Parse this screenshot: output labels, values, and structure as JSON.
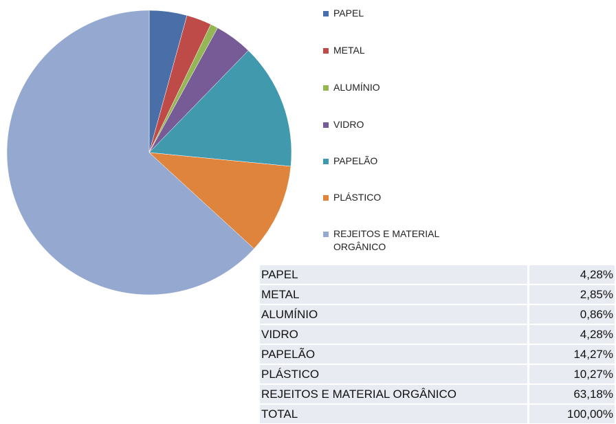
{
  "chart_data": {
    "type": "pie",
    "categories": [
      "PAPEL",
      "METAL",
      "ALUMÍNIO",
      "VIDRO",
      "PAPELÃO",
      "PLÁSTICO",
      "REJEITOS E MATERIAL ORGÂNICO"
    ],
    "values": [
      4.28,
      2.85,
      0.86,
      4.28,
      14.27,
      10.27,
      63.18
    ],
    "colors": [
      "#4a6fa8",
      "#bf4b48",
      "#95b654",
      "#775b97",
      "#4199ae",
      "#de843c",
      "#94a8d0"
    ],
    "legend": "right"
  },
  "table": {
    "rows": [
      [
        "PAPEL",
        "4,28%"
      ],
      [
        "METAL",
        "2,85%"
      ],
      [
        "ALUMÍNIO",
        "0,86%"
      ],
      [
        "VIDRO",
        "4,28%"
      ],
      [
        "PAPELÃO",
        "14,27%"
      ],
      [
        "PLÁSTICO",
        "10,27%"
      ],
      [
        "REJEITOS E MATERIAL ORGÂNICO",
        "63,18%"
      ],
      [
        "TOTAL",
        "100,00%"
      ]
    ]
  }
}
